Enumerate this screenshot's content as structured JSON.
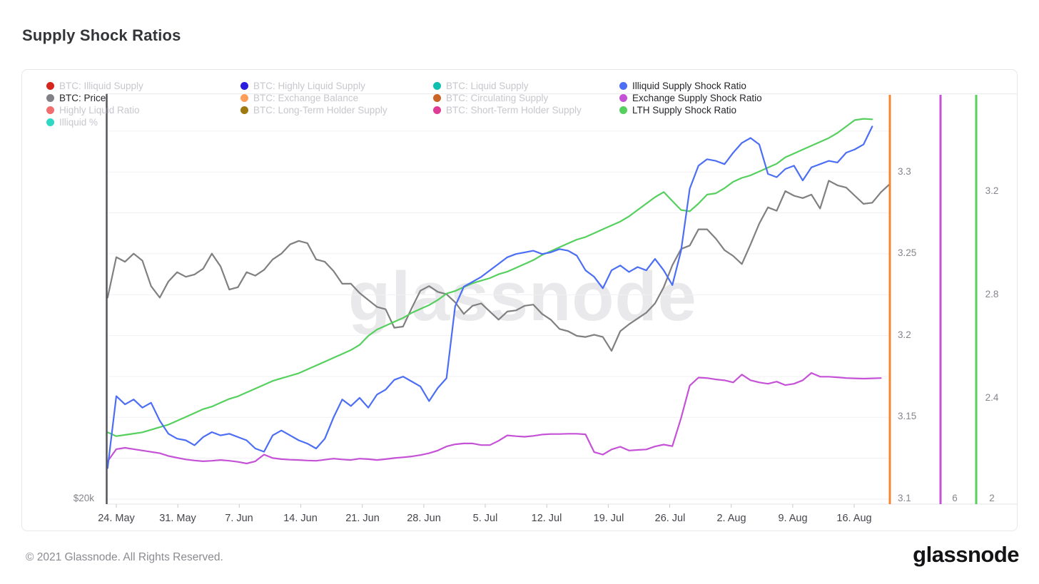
{
  "page": {
    "title": "Supply Shock Ratios"
  },
  "footer": {
    "copyright": "© 2021 Glassnode. All Rights Reserved.",
    "logo_text": "glassnode"
  },
  "legend": {
    "active_text_color": "#26262b",
    "inactive_text_color": "#c7c7cd",
    "items": [
      {
        "label": "BTC: Illiquid Supply",
        "color": "#d6251c",
        "active": false
      },
      {
        "label": "BTC: Price",
        "color": "#808086",
        "active": true
      },
      {
        "label": "Highly Liquid Ratio",
        "color": "#f26d6d",
        "active": false
      },
      {
        "label": "Illiquid %",
        "color": "#2fd8c3",
        "active": false
      },
      {
        "label": "BTC: Highly Liquid Supply",
        "color": "#2b1de0",
        "active": false
      },
      {
        "label": "BTC: Exchange Balance",
        "color": "#ff9e57",
        "active": false
      },
      {
        "label": "BTC: Long-Term Holder Supply",
        "color": "#9c7a10",
        "active": false
      },
      {
        "label": "BTC: Liquid Supply",
        "color": "#0fc0ae",
        "active": false
      },
      {
        "label": "BTC: Circulating Supply",
        "color": "#ca6426",
        "active": false
      },
      {
        "label": "BTC: Short-Term Holder Supply",
        "color": "#df3c96",
        "active": false
      },
      {
        "label": "Illiquid Supply Shock Ratio",
        "color": "#4c6ef5",
        "active": true
      },
      {
        "label": "Exchange Supply Shock Ratio",
        "color": "#c552d6",
        "active": true
      },
      {
        "label": "LTH Supply Shock Ratio",
        "color": "#55d05e",
        "active": true
      }
    ]
  },
  "chart_data": {
    "type": "line",
    "title": "Supply Shock Ratios",
    "watermark": "glassnode",
    "grid": true,
    "x_tick_labels": [
      "24. May",
      "31. May",
      "7. Jun",
      "14. Jun",
      "21. Jun",
      "28. Jun",
      "5. Jul",
      "12. Jul",
      "19. Jul",
      "26. Jul",
      "2. Aug",
      "9. Aug",
      "16. Aug"
    ],
    "left_axis": {
      "bottom_label": "$20k"
    },
    "right_axes": [
      {
        "name": "illiquid-supply-shock-axis",
        "ticks": [
          "3.3",
          "3.25",
          "3.2",
          "3.15",
          "3.1"
        ]
      },
      {
        "name": "exchange-supply-shock-axis",
        "ticks": [
          "6"
        ]
      },
      {
        "name": "lth-supply-shock-axis",
        "ticks": [
          "3.2",
          "2.8",
          "2.4",
          "2"
        ]
      }
    ],
    "vertical_axis_lines": [
      {
        "name": "exchange-balance-axis-line",
        "color": "#f8852d"
      },
      {
        "name": "exchange-shock-axis-line",
        "color": "#c552d6"
      },
      {
        "name": "lth-shock-axis-line",
        "color": "#55d05e"
      }
    ],
    "series": [
      {
        "name": "BTC: Price",
        "unit": "$k USD",
        "color": "#808080",
        "scale": {
          "min": 20,
          "max": 55
        },
        "values": [
          37.4,
          40.9,
          40.5,
          41.2,
          40.6,
          38.4,
          37.4,
          38.8,
          39.6,
          39.2,
          39.4,
          39.9,
          41.2,
          40.1,
          38.1,
          38.3,
          39.6,
          39.3,
          39.8,
          40.7,
          41.2,
          42.0,
          42.3,
          42.1,
          40.7,
          40.5,
          39.7,
          38.6,
          38.6,
          37.8,
          37.2,
          36.6,
          36.4,
          34.8,
          34.9,
          36.5,
          38.0,
          38.4,
          37.9,
          37.7,
          37.0,
          36.0,
          36.7,
          36.9,
          36.2,
          35.5,
          36.2,
          36.3,
          36.7,
          36.8,
          36.0,
          35.5,
          34.7,
          34.5,
          34.1,
          34.0,
          34.2,
          34.0,
          32.8,
          34.5,
          35.1,
          35.6,
          36.1,
          36.9,
          38.3,
          40.2,
          41.6,
          41.9,
          43.3,
          43.3,
          42.5,
          41.5,
          41.0,
          40.3,
          42.0,
          43.8,
          45.2,
          44.9,
          46.6,
          46.2,
          46.0,
          46.3,
          45.1,
          47.5,
          47.1,
          46.9,
          46.2,
          45.5,
          45.6,
          46.5,
          47.2
        ]
      },
      {
        "name": "LTH Supply Shock Ratio",
        "color": "#55d05e",
        "scale": {
          "min": 2,
          "max": 3.577
        },
        "values": [
          2.26,
          2.245,
          2.25,
          2.255,
          2.26,
          2.27,
          2.28,
          2.29,
          2.305,
          2.32,
          2.335,
          2.35,
          2.36,
          2.375,
          2.39,
          2.4,
          2.415,
          2.43,
          2.445,
          2.46,
          2.47,
          2.48,
          2.49,
          2.505,
          2.52,
          2.535,
          2.55,
          2.565,
          2.58,
          2.6,
          2.635,
          2.66,
          2.675,
          2.69,
          2.705,
          2.725,
          2.74,
          2.755,
          2.775,
          2.8,
          2.81,
          2.825,
          2.84,
          2.85,
          2.86,
          2.875,
          2.885,
          2.9,
          2.915,
          2.93,
          2.95,
          2.965,
          2.98,
          2.995,
          3.01,
          3.02,
          3.035,
          3.05,
          3.065,
          3.08,
          3.1,
          3.125,
          3.15,
          3.175,
          3.195,
          3.16,
          3.125,
          3.12,
          3.15,
          3.185,
          3.19,
          3.21,
          3.235,
          3.25,
          3.26,
          3.275,
          3.29,
          3.305,
          3.33,
          3.345,
          3.36,
          3.375,
          3.39,
          3.405,
          3.425,
          3.45,
          3.475,
          3.48,
          3.478
        ]
      },
      {
        "name": "Exchange Supply Shock Ratio",
        "color": "#c552d6",
        "scale": {
          "min": 6,
          "max": 7.5
        },
        "values": [
          6.14,
          6.185,
          6.19,
          6.185,
          6.18,
          6.175,
          6.17,
          6.16,
          6.153,
          6.147,
          6.143,
          6.14,
          6.142,
          6.145,
          6.142,
          6.138,
          6.132,
          6.14,
          6.165,
          6.152,
          6.148,
          6.146,
          6.145,
          6.143,
          6.142,
          6.146,
          6.15,
          6.147,
          6.145,
          6.15,
          6.148,
          6.145,
          6.148,
          6.152,
          6.155,
          6.158,
          6.163,
          6.17,
          6.18,
          6.195,
          6.203,
          6.206,
          6.206,
          6.2,
          6.2,
          6.216,
          6.236,
          6.233,
          6.231,
          6.234,
          6.239,
          6.241,
          6.241,
          6.242,
          6.242,
          6.24,
          6.174,
          6.165,
          6.184,
          6.194,
          6.18,
          6.182,
          6.184,
          6.195,
          6.202,
          6.196,
          6.3,
          6.42,
          6.45,
          6.448,
          6.443,
          6.44,
          6.432,
          6.461,
          6.44,
          6.432,
          6.427,
          6.435,
          6.422,
          6.427,
          6.44,
          6.467,
          6.453,
          6.453,
          6.451,
          6.448,
          6.447,
          6.446,
          6.447,
          6.448
        ]
      },
      {
        "name": "Illiquid Supply Shock Ratio",
        "color": "#4c6ef5",
        "scale": {
          "min": 3.1,
          "max": 3.348
        },
        "values": [
          3.119,
          3.163,
          3.158,
          3.161,
          3.156,
          3.159,
          3.148,
          3.14,
          3.137,
          3.136,
          3.133,
          3.138,
          3.141,
          3.139,
          3.14,
          3.138,
          3.136,
          3.131,
          3.129,
          3.139,
          3.142,
          3.139,
          3.136,
          3.134,
          3.131,
          3.137,
          3.15,
          3.161,
          3.157,
          3.162,
          3.156,
          3.164,
          3.167,
          3.173,
          3.175,
          3.172,
          3.169,
          3.16,
          3.168,
          3.174,
          3.218,
          3.23,
          3.233,
          3.236,
          3.24,
          3.244,
          3.248,
          3.25,
          3.251,
          3.252,
          3.25,
          3.251,
          3.253,
          3.252,
          3.249,
          3.24,
          3.236,
          3.229,
          3.24,
          3.243,
          3.239,
          3.242,
          3.24,
          3.247,
          3.24,
          3.231,
          3.252,
          3.29,
          3.304,
          3.308,
          3.307,
          3.305,
          3.312,
          3.318,
          3.321,
          3.317,
          3.299,
          3.297,
          3.302,
          3.304,
          3.295,
          3.303,
          3.305,
          3.307,
          3.306,
          3.312,
          3.314,
          3.317,
          3.328
        ]
      }
    ]
  }
}
